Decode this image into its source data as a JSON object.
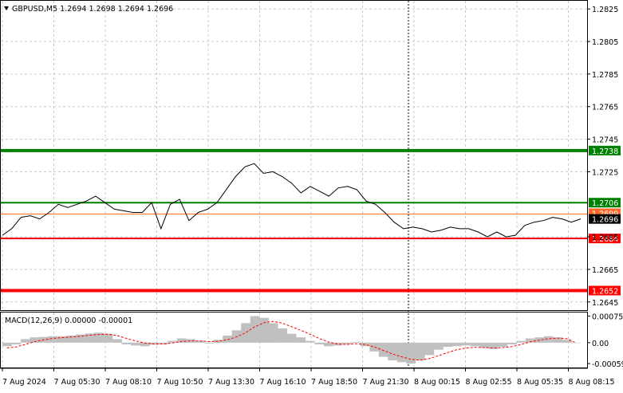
{
  "header": {
    "arrow_icon": "triangle-down-icon",
    "symbol_info": "GBPUSD,M5  1.2694 1.2698 1.2694 1.2696"
  },
  "price_axis": {
    "ticks": [
      "1.2825",
      "1.2805",
      "1.2785",
      "1.2765",
      "1.2745",
      "1.2725",
      "1.2685",
      "1.2665",
      "1.2645"
    ]
  },
  "levels": [
    {
      "label": "1.2738",
      "value": 1.2738,
      "color": "#008000",
      "kind": "resistance"
    },
    {
      "label": "1.2706",
      "value": 1.2706,
      "color": "#008000",
      "kind": "resistance"
    },
    {
      "label": "1.2699",
      "value": 1.2699,
      "color": "#ff6a2b",
      "kind": "marker"
    },
    {
      "label": "1.2696",
      "value": 1.2696,
      "color": "#000000",
      "kind": "current"
    },
    {
      "label": "1.2684",
      "value": 1.2684,
      "color": "#ff0000",
      "kind": "support"
    },
    {
      "label": "1.2652",
      "value": 1.2652,
      "color": "#ff0000",
      "kind": "support"
    }
  ],
  "macd": {
    "label": "MACD(12,26,9) 0.00000 -0.00001",
    "ticks": [
      "0.00075",
      "0.00",
      "-0.00059"
    ]
  },
  "time_axis": {
    "labels": [
      "7 Aug 2024",
      "7 Aug 05:30",
      "7 Aug 08:10",
      "7 Aug 10:50",
      "7 Aug 13:30",
      "7 Aug 16:10",
      "7 Aug 18:50",
      "7 Aug 21:30",
      "8 Aug 00:15",
      "8 Aug 02:55",
      "8 Aug 05:35",
      "8 Aug 08:15"
    ]
  },
  "colors": {
    "background": "#ffffff",
    "grid": "#c8c8c8",
    "price_line": "#000000",
    "histogram": "#c0c0c0",
    "signal": "#ff0000"
  },
  "chart_data": {
    "type": "line",
    "title": "GBPUSD,M5",
    "price_series": {
      "name": "GBPUSD,M5",
      "values": [
        1.2686,
        1.269,
        1.2697,
        1.2698,
        1.2696,
        1.27,
        1.2705,
        1.2703,
        1.2705,
        1.2707,
        1.271,
        1.2706,
        1.2702,
        1.2701,
        1.27,
        1.27,
        1.2706,
        1.269,
        1.2705,
        1.2708,
        1.2695,
        1.27,
        1.2702,
        1.2706,
        1.2714,
        1.2722,
        1.2728,
        1.273,
        1.2724,
        1.2725,
        1.2722,
        1.2718,
        1.2712,
        1.2716,
        1.2713,
        1.271,
        1.2715,
        1.2716,
        1.2714,
        1.2707,
        1.2705,
        1.27,
        1.2694,
        1.269,
        1.2691,
        1.269,
        1.2688,
        1.2689,
        1.2691,
        1.269,
        1.269,
        1.2688,
        1.2685,
        1.2688,
        1.2685,
        1.2686,
        1.2692,
        1.2694,
        1.2695,
        1.2697,
        1.2696,
        1.2694,
        1.2696
      ]
    },
    "macd_histogram": {
      "name": "MACD(12,26,9)",
      "values": [
        -0.0001,
        -5e-05,
        0.0001,
        0.00015,
        0.00016,
        0.00018,
        0.00018,
        0.0002,
        0.00023,
        0.00026,
        0.00028,
        0.00025,
        0.0001,
        -5e-05,
        -8e-05,
        -0.0001,
        -6e-05,
        -5e-05,
        5e-05,
        0.00012,
        0.0001,
        5e-05,
        -2e-05,
        8e-05,
        0.0002,
        0.00035,
        0.00055,
        0.00075,
        0.0007,
        0.00055,
        0.0004,
        0.00025,
        0.00015,
        5e-05,
        -5e-05,
        -0.0001,
        -8e-05,
        -5e-05,
        2e-05,
        -0.0001,
        -0.00025,
        -0.0004,
        -0.0005,
        -0.00055,
        -0.00059,
        -0.0005,
        -0.00035,
        -0.0002,
        -0.00012,
        -0.0001,
        -8e-05,
        -0.0001,
        -0.00015,
        -0.00018,
        -0.00012,
        -5e-05,
        5e-05,
        0.00012,
        0.00015,
        0.00018,
        0.00015,
        8e-05,
        0.0
      ]
    },
    "macd_signal": {
      "values": [
        -0.00015,
        -0.00012,
        -5e-05,
        3e-05,
        8e-05,
        0.00012,
        0.00014,
        0.00016,
        0.00018,
        0.00021,
        0.00023,
        0.00024,
        0.0002,
        0.00012,
        5e-05,
        -1e-05,
        -3e-05,
        -4e-05,
        -1e-05,
        3e-05,
        5e-05,
        5e-05,
        3e-05,
        4e-05,
        8e-05,
        0.00016,
        0.00028,
        0.00045,
        0.00056,
        0.0006,
        0.00055,
        0.00045,
        0.00035,
        0.00024,
        0.00012,
        2e-05,
        -4e-05,
        -5e-05,
        -3e-05,
        -5e-05,
        -0.00012,
        -0.00022,
        -0.00032,
        -0.0004,
        -0.00047,
        -0.00049,
        -0.00045,
        -0.00037,
        -0.00028,
        -0.0002,
        -0.00015,
        -0.00013,
        -0.00014,
        -0.00015,
        -0.00014,
        -0.00011,
        -5e-05,
        2e-05,
        7e-05,
        0.00011,
        0.00013,
        0.00011,
        -1e-05
      ]
    },
    "ylim": [
      1.264,
      1.283
    ],
    "macd_ylim": [
      -0.0007,
      0.00085
    ],
    "grid": true
  }
}
